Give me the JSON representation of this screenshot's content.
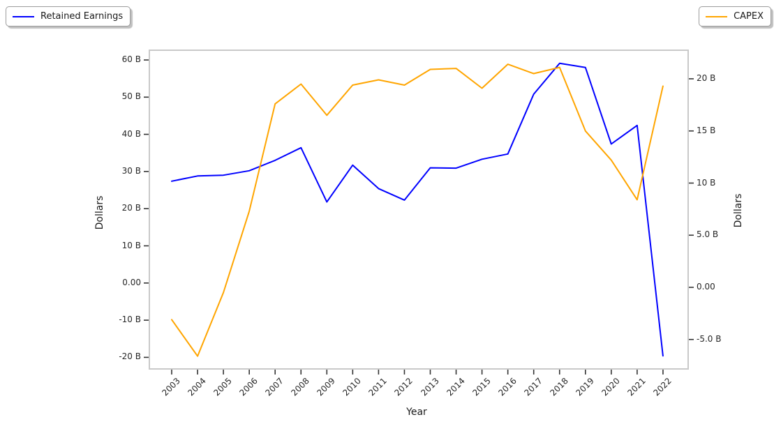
{
  "figure": {
    "legends": [
      {
        "label": "Retained Earnings",
        "color": "#0000ff"
      },
      {
        "label": "CAPEX",
        "color": "#ffa500"
      }
    ]
  },
  "chart_data": {
    "type": "line",
    "title": "",
    "xlabel": "Year",
    "x": [
      2003,
      2004,
      2005,
      2006,
      2007,
      2008,
      2009,
      2010,
      2011,
      2012,
      2013,
      2014,
      2015,
      2016,
      2017,
      2018,
      2019,
      2020,
      2021,
      2022
    ],
    "x_tick_labels": [
      "2003",
      "2004",
      "2005",
      "2006",
      "2007",
      "2008",
      "2009",
      "2010",
      "2011",
      "2012",
      "2013",
      "2014",
      "2015",
      "2016",
      "2017",
      "2018",
      "2019",
      "2020",
      "2021",
      "2022"
    ],
    "series": [
      {
        "name": "Retained Earnings",
        "axis": "left",
        "color": "#0000ff",
        "unit": "billions of dollars",
        "values": [
          27.4,
          28.8,
          29.0,
          30.2,
          33.0,
          36.4,
          21.8,
          31.7,
          25.4,
          22.3,
          31.0,
          30.9,
          33.3,
          34.7,
          50.8,
          59.1,
          58.0,
          37.4,
          42.4,
          -19.6
        ]
      },
      {
        "name": "CAPEX",
        "axis": "right",
        "color": "#ffa500",
        "unit": "billions of dollars",
        "values": [
          -3.1,
          -6.6,
          -0.5,
          7.3,
          17.6,
          19.5,
          16.5,
          19.4,
          19.9,
          19.4,
          20.9,
          21.0,
          19.1,
          21.4,
          20.5,
          21.1,
          15.0,
          12.2,
          8.4,
          19.3
        ]
      }
    ],
    "left_axis": {
      "label": "Dollars",
      "range": [
        -23.1,
        62.8
      ],
      "ticks": [
        {
          "value": 60,
          "label": "60 B"
        },
        {
          "value": 50,
          "label": "50 B"
        },
        {
          "value": 40,
          "label": "40 B"
        },
        {
          "value": 30,
          "label": "30 B"
        },
        {
          "value": 20,
          "label": "20 B"
        },
        {
          "value": 10,
          "label": "10 B"
        },
        {
          "value": 0,
          "label": "0.00"
        },
        {
          "value": -10,
          "label": "-10 B"
        },
        {
          "value": -20,
          "label": "-20 B"
        }
      ]
    },
    "right_axis": {
      "label": "Dollars",
      "range": [
        -7.8,
        22.8
      ],
      "ticks": [
        {
          "value": 20,
          "label": "20 B"
        },
        {
          "value": 15,
          "label": "15 B"
        },
        {
          "value": 10,
          "label": "10 B"
        },
        {
          "value": 5,
          "label": "5.0 B"
        },
        {
          "value": 0,
          "label": "0.00"
        },
        {
          "value": -5,
          "label": "-5.0 B"
        }
      ]
    },
    "grid": false,
    "legend_position": "two fancy boxes outside axes: top-left and top-right"
  }
}
